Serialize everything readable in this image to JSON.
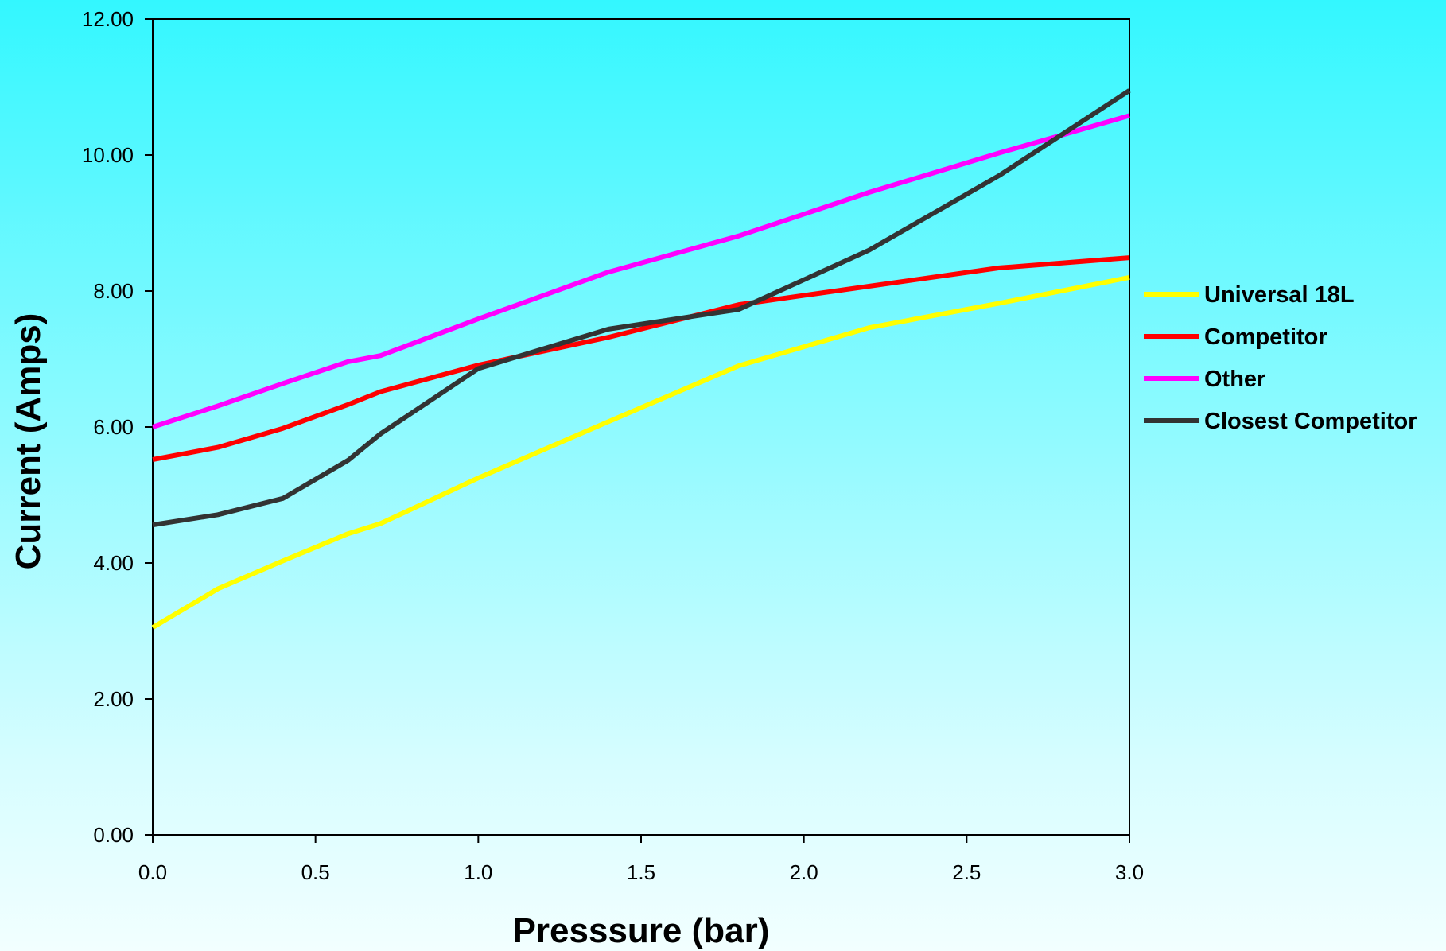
{
  "chart_data": {
    "type": "line",
    "title": "",
    "xlabel": "Presssure (bar)",
    "ylabel": "Current (Amps)",
    "xlim": [
      0,
      3
    ],
    "ylim": [
      0,
      12
    ],
    "x_ticks": [
      "0.0",
      "0.5",
      "1.0",
      "1.5",
      "2.0",
      "2.5",
      "3.0"
    ],
    "y_ticks": [
      "0.00",
      "2.00",
      "4.00",
      "6.00",
      "8.00",
      "10.00",
      "12.00"
    ],
    "grid": false,
    "legend_position": "right",
    "series": [
      {
        "name": "Universal 18L",
        "color": "#ffff00",
        "x": [
          0,
          0.2,
          0.4,
          0.6,
          0.7,
          1.0,
          1.4,
          1.8,
          2.2,
          2.6,
          3.0
        ],
        "y": [
          3.05,
          3.62,
          4.03,
          4.43,
          4.58,
          5.25,
          6.08,
          6.9,
          7.46,
          7.82,
          8.2
        ]
      },
      {
        "name": "Competitor",
        "color": "#ff0000",
        "x": [
          0,
          0.2,
          0.4,
          0.6,
          0.7,
          1.0,
          1.4,
          1.8,
          2.2,
          2.6,
          3.0
        ],
        "y": [
          5.52,
          5.7,
          5.98,
          6.33,
          6.52,
          6.91,
          7.32,
          7.8,
          8.07,
          8.34,
          8.49
        ]
      },
      {
        "name": "Other",
        "color": "#ff00ff",
        "x": [
          0,
          0.2,
          0.4,
          0.6,
          0.7,
          1.0,
          1.4,
          1.8,
          2.2,
          2.6,
          3.0
        ],
        "y": [
          6.0,
          6.31,
          6.64,
          6.96,
          7.05,
          7.59,
          8.28,
          8.81,
          9.45,
          10.03,
          10.58
        ]
      },
      {
        "name": "Closest Competitor",
        "color": "#333333",
        "x": [
          0,
          0.2,
          0.4,
          0.6,
          0.7,
          1.0,
          1.4,
          1.8,
          2.2,
          2.6,
          3.0
        ],
        "y": [
          4.56,
          4.71,
          4.95,
          5.51,
          5.9,
          6.86,
          7.44,
          7.73,
          8.6,
          9.7,
          10.95
        ]
      }
    ]
  }
}
